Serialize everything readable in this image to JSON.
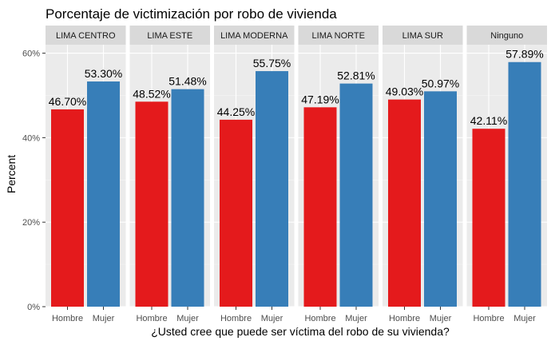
{
  "chart_data": {
    "type": "bar",
    "title": "Porcentaje de victimización por robo de vivienda",
    "xlabel": "¿Usted cree que puede ser víctima del robo de su vivienda?",
    "ylabel": "Percent",
    "ylim": [
      0,
      0.62
    ],
    "yticks": [
      0,
      0.2,
      0.4,
      0.6
    ],
    "ytick_labels": [
      "0%",
      "20%",
      "40%",
      "60%"
    ],
    "categories": [
      "Hombre",
      "Mujer"
    ],
    "colors": {
      "Hombre": "#e41a1c",
      "Mujer": "#377eb8"
    },
    "panel_background": "#ebebeb",
    "strip_background": "#d9d9d9",
    "grid": true,
    "legend": "none",
    "facets": [
      {
        "name": "LIMA CENTRO",
        "values": [
          0.467,
          0.533
        ],
        "labels": [
          "46.70%",
          "53.30%"
        ]
      },
      {
        "name": "LIMA ESTE",
        "values": [
          0.4852,
          0.5148
        ],
        "labels": [
          "48.52%",
          "51.48%"
        ]
      },
      {
        "name": "LIMA MODERNA",
        "values": [
          0.4425,
          0.5575
        ],
        "labels": [
          "44.25%",
          "55.75%"
        ]
      },
      {
        "name": "LIMA NORTE",
        "values": [
          0.4719,
          0.5281
        ],
        "labels": [
          "47.19%",
          "52.81%"
        ]
      },
      {
        "name": "LIMA SUR",
        "values": [
          0.4903,
          0.5097
        ],
        "labels": [
          "49.03%",
          "50.97%"
        ]
      },
      {
        "name": "Ninguno",
        "values": [
          0.4211,
          0.5789
        ],
        "labels": [
          "42.11%",
          "57.89%"
        ]
      }
    ]
  }
}
